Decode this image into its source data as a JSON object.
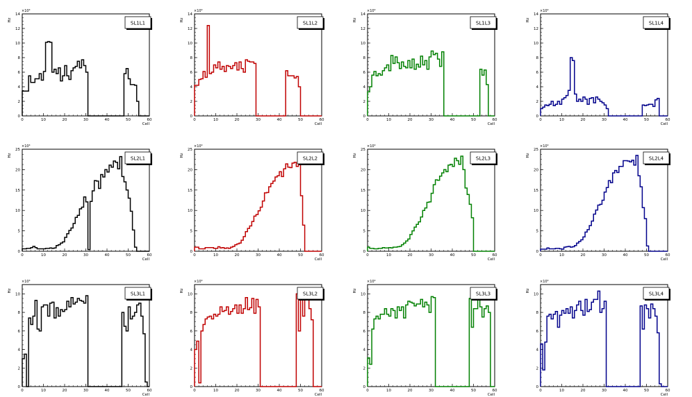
{
  "chart_data": [
    {
      "type": "histogram",
      "title": "SL1L1",
      "ylabel": "Hz",
      "xlabel": "Cell",
      "exponent": "×10³",
      "xlim": [
        0,
        60
      ],
      "ylim": [
        0,
        14
      ],
      "yticks": [
        0,
        2,
        4,
        6,
        8,
        10,
        12,
        14
      ],
      "xticks": [
        0,
        10,
        20,
        30,
        40,
        50,
        60
      ],
      "color": "#000000",
      "values": [
        3.4,
        3.4,
        3.4,
        5.5,
        4.6,
        4.6,
        5.1,
        5.1,
        5.8,
        4.9,
        6.1,
        10.1,
        10.2,
        10.1,
        6.0,
        6.4,
        5.8,
        6.6,
        4.8,
        5.5,
        6.9,
        5.5,
        5.0,
        6.2,
        6.6,
        6.8,
        7.5,
        6.6,
        7.7,
        6.9,
        6.0,
        0,
        0,
        0,
        0,
        0,
        0,
        0,
        0,
        0,
        0,
        0,
        0,
        0,
        0,
        0,
        0,
        0,
        5.8,
        6.5,
        5.1,
        4.3,
        4.3,
        4.2,
        2.0,
        0,
        0,
        0,
        0,
        0
      ]
    },
    {
      "type": "histogram",
      "title": "SL1L2",
      "ylabel": "Hz",
      "xlabel": "Cell",
      "exponent": "×10³",
      "xlim": [
        0,
        60
      ],
      "ylim": [
        0,
        14
      ],
      "yticks": [
        0,
        2,
        4,
        6,
        8,
        10,
        12,
        14
      ],
      "xticks": [
        0,
        10,
        20,
        30,
        40,
        50,
        60
      ],
      "color": "#c00000",
      "values": [
        4.2,
        4.2,
        5.0,
        5.1,
        6.1,
        5.3,
        12.4,
        5.8,
        6.0,
        7.0,
        6.6,
        7.4,
        6.4,
        6.8,
        6.1,
        6.9,
        6.8,
        6.5,
        6.9,
        7.3,
        6.3,
        7.4,
        6.5,
        6.0,
        7.7,
        7.5,
        7.4,
        7.4,
        7.2,
        0,
        0,
        0,
        0,
        0,
        0,
        0,
        0,
        0,
        0,
        0,
        0,
        0,
        0,
        6.2,
        5.5,
        5.5,
        5.5,
        5.2,
        5.4,
        4.0,
        0,
        0,
        0,
        0,
        0,
        0,
        0,
        0,
        0,
        0
      ]
    },
    {
      "type": "histogram",
      "title": "SL1L3",
      "ylabel": "Hz",
      "xlabel": "Cell",
      "exponent": "×10³",
      "xlim": [
        0,
        60
      ],
      "ylim": [
        0,
        14
      ],
      "yticks": [
        0,
        2,
        4,
        6,
        8,
        10,
        12,
        14
      ],
      "xticks": [
        0,
        10,
        20,
        30,
        40,
        50,
        60
      ],
      "color": "#008000",
      "values": [
        3.3,
        4.0,
        5.6,
        6.1,
        5.5,
        5.8,
        5.6,
        6.2,
        6.6,
        7.0,
        6.2,
        8.3,
        7.2,
        8.1,
        7.3,
        6.5,
        7.4,
        6.8,
        6.6,
        7.6,
        6.6,
        7.8,
        6.4,
        7.1,
        6.7,
        8.2,
        7.0,
        7.6,
        6.4,
        8.1,
        8.9,
        8.4,
        8.6,
        7.8,
        6.8,
        8.8,
        0,
        0,
        0,
        0,
        0,
        0,
        0,
        0,
        0,
        0,
        0,
        0,
        0,
        0,
        0,
        0,
        0,
        6.4,
        5.6,
        6.3,
        4.3,
        0,
        0,
        0
      ]
    },
    {
      "type": "histogram",
      "title": "SL1L4",
      "ylabel": "Hz",
      "xlabel": "Cell",
      "exponent": "×10³",
      "xlim": [
        0,
        60
      ],
      "ylim": [
        0,
        14
      ],
      "yticks": [
        0,
        2,
        4,
        6,
        8,
        10,
        12,
        14
      ],
      "xticks": [
        0,
        10,
        20,
        30,
        40,
        50,
        60
      ],
      "color": "#00008b",
      "values": [
        1.0,
        1.2,
        1.5,
        1.4,
        1.6,
        2.0,
        1.4,
        1.6,
        2.0,
        1.6,
        2.3,
        2.5,
        2.8,
        3.5,
        8.0,
        7.6,
        3.0,
        2.0,
        2.3,
        2.0,
        2.6,
        2.3,
        1.6,
        2.4,
        2.5,
        1.8,
        2.6,
        2.3,
        2.0,
        1.8,
        1.5,
        1.0,
        0,
        0,
        0,
        0,
        0,
        0,
        0,
        0,
        0,
        0,
        0,
        0,
        0,
        0,
        0,
        0,
        1.5,
        1.4,
        1.5,
        1.6,
        1.6,
        1.3,
        2.2,
        2.4,
        0,
        0,
        0,
        0
      ]
    },
    {
      "type": "histogram",
      "title": "SL2L1",
      "ylabel": "Hz",
      "xlabel": "Cell",
      "exponent": "×10³",
      "xlim": [
        0,
        60
      ],
      "ylim": [
        0,
        25
      ],
      "yticks": [
        0,
        5,
        10,
        15,
        20,
        25
      ],
      "xticks": [
        0,
        10,
        20,
        30,
        40,
        50,
        60
      ],
      "color": "#000000",
      "values": [
        0.6,
        0.6,
        0.7,
        0.7,
        0.9,
        1.2,
        0.9,
        0.6,
        0.6,
        0.6,
        0.6,
        0.7,
        0.7,
        0.8,
        0.7,
        0.8,
        1.4,
        1.6,
        2.0,
        2.3,
        3.4,
        4.3,
        5.1,
        5.7,
        6.8,
        8.3,
        8.8,
        10.4,
        10.8,
        13.3,
        12.1,
        0.4,
        12.2,
        14.8,
        17.3,
        17.2,
        15.4,
        18.8,
        18.2,
        20.0,
        19.4,
        21.1,
        20.6,
        22.1,
        21.8,
        20.2,
        23.2,
        18.3,
        17.0,
        15.0,
        13.0,
        9.8,
        5.2,
        1.0,
        0,
        0,
        0,
        0,
        0,
        0
      ]
    },
    {
      "type": "histogram",
      "title": "SL2L2",
      "ylabel": "Hz",
      "xlabel": "Cell",
      "exponent": "×10³",
      "xlim": [
        0,
        60
      ],
      "ylim": [
        0,
        25
      ],
      "yticks": [
        0,
        5,
        10,
        15,
        20,
        25
      ],
      "xticks": [
        0,
        10,
        20,
        30,
        40,
        50,
        60
      ],
      "color": "#c00000",
      "values": [
        1.0,
        1.0,
        0.6,
        0.6,
        0.6,
        0.9,
        0.9,
        0.9,
        0.9,
        0.7,
        0.7,
        1.1,
        0.8,
        0.9,
        0.7,
        0.8,
        0.7,
        1.0,
        1.2,
        1.6,
        1.8,
        2.0,
        2.7,
        3.6,
        4.8,
        5.6,
        6.2,
        7.3,
        8.6,
        9.0,
        9.9,
        10.8,
        12.3,
        14.3,
        14.4,
        15.8,
        16.6,
        17.2,
        18.2,
        18.5,
        19.5,
        18.3,
        20.2,
        21.4,
        20.6,
        20.5,
        21.6,
        21.8,
        20.8,
        22.1,
        13.6,
        6.4,
        0,
        0,
        0,
        0,
        0,
        0,
        0,
        0
      ]
    },
    {
      "type": "histogram",
      "title": "SL2L3",
      "ylabel": "Hz",
      "xlabel": "Cell",
      "exponent": "×10³",
      "xlim": [
        0,
        60
      ],
      "ylim": [
        0,
        25
      ],
      "yticks": [
        0,
        5,
        10,
        15,
        20,
        25
      ],
      "xticks": [
        0,
        10,
        20,
        30,
        40,
        50,
        60
      ],
      "color": "#008000",
      "values": [
        1.0,
        0.7,
        0.7,
        0.6,
        0.6,
        0.7,
        0.7,
        0.9,
        0.8,
        0.8,
        0.9,
        0.8,
        1.0,
        1.0,
        1.1,
        1.2,
        1.6,
        2.0,
        2.5,
        3.0,
        4.1,
        5.0,
        5.9,
        6.6,
        7.2,
        8.4,
        10.0,
        10.6,
        12.0,
        12.1,
        14.2,
        16.3,
        17.5,
        17.4,
        18.4,
        19.2,
        20.0,
        19.5,
        21.1,
        21.3,
        20.8,
        22.8,
        22.2,
        21.3,
        23.3,
        20.0,
        15.5,
        13.9,
        11.5,
        8.2,
        0,
        0,
        0,
        0,
        0,
        0,
        0,
        0,
        0,
        0
      ]
    },
    {
      "type": "histogram",
      "title": "SL2L4",
      "ylabel": "Hz",
      "xlabel": "Cell",
      "exponent": "×10³",
      "xlim": [
        0,
        60
      ],
      "ylim": [
        0,
        25
      ],
      "yticks": [
        0,
        5,
        10,
        15,
        20,
        25
      ],
      "xticks": [
        0,
        10,
        20,
        30,
        40,
        50,
        60
      ],
      "color": "#00008b",
      "values": [
        0.5,
        0.5,
        0.5,
        0.8,
        0.6,
        0.6,
        0.6,
        0.7,
        0.7,
        0.6,
        0.5,
        1.0,
        1.1,
        1.2,
        1.0,
        1.1,
        1.4,
        2.0,
        2.4,
        2.8,
        3.5,
        4.7,
        5.3,
        6.3,
        7.4,
        9.1,
        10.1,
        11.3,
        11.5,
        12.5,
        14.5,
        15.6,
        17.3,
        16.8,
        19.2,
        19.8,
        19.3,
        20.8,
        20.8,
        22.2,
        22.2,
        22.1,
        21.9,
        22.3,
        21.1,
        23.5,
        18.5,
        15.8,
        10.7,
        8.0,
        1.3,
        0,
        0,
        0,
        0,
        0,
        0,
        0,
        0,
        0
      ]
    },
    {
      "type": "histogram",
      "title": "SL3L1",
      "ylabel": "Hz",
      "xlabel": "Cell",
      "exponent": "×10³",
      "xlim": [
        0,
        60
      ],
      "ylim": [
        0,
        11
      ],
      "yticks": [
        0,
        2,
        4,
        6,
        8,
        10
      ],
      "xticks": [
        0,
        10,
        20,
        30,
        40,
        50,
        60
      ],
      "color": "#000000",
      "values": [
        3.0,
        3.5,
        0,
        7.4,
        6.7,
        7.6,
        9.3,
        6.2,
        6.0,
        8.6,
        8.8,
        8.8,
        7.6,
        9.0,
        9.1,
        7.4,
        8.5,
        7.6,
        8.3,
        8.1,
        8.3,
        9.2,
        8.6,
        9.6,
        8.9,
        9.1,
        9.5,
        9.3,
        9.2,
        9.0,
        9.8,
        0,
        0,
        0,
        0,
        0,
        0,
        0,
        0,
        0,
        0,
        0,
        0,
        0,
        0,
        0,
        0,
        8.0,
        6.5,
        6.0,
        8.6,
        7.3,
        7.6,
        8.0,
        8.8,
        9.0,
        7.6,
        5.7,
        0.5,
        0
      ]
    },
    {
      "type": "histogram",
      "title": "SL3L2",
      "ylabel": "Hz",
      "xlabel": "Cell",
      "exponent": "×10³",
      "xlim": [
        0,
        60
      ],
      "ylim": [
        0,
        11
      ],
      "yticks": [
        0,
        2,
        4,
        6,
        8,
        10
      ],
      "xticks": [
        0,
        10,
        20,
        30,
        40,
        50,
        60
      ],
      "color": "#c00000",
      "values": [
        4.0,
        4.9,
        0.4,
        6.0,
        6.7,
        7.3,
        7.5,
        7.6,
        7.3,
        7.8,
        7.6,
        7.8,
        8.6,
        8.1,
        8.2,
        8.6,
        7.8,
        8.1,
        8.4,
        8.8,
        7.9,
        8.8,
        7.9,
        8.4,
        9.6,
        8.3,
        8.5,
        9.5,
        7.9,
        9.4,
        8.6,
        0,
        0,
        0,
        0,
        0,
        0,
        0,
        0,
        0,
        0,
        0,
        0,
        0,
        0,
        0,
        0,
        0,
        10.0,
        6.0,
        9.8,
        7.6,
        9.6,
        9.6,
        8.4,
        7.2,
        0,
        0,
        0,
        0
      ]
    },
    {
      "type": "histogram",
      "title": "SL3L3",
      "ylabel": "Hz",
      "xlabel": "Cell",
      "exponent": "×10³",
      "xlim": [
        0,
        60
      ],
      "ylim": [
        0,
        11
      ],
      "yticks": [
        0,
        2,
        4,
        6,
        8,
        10
      ],
      "xticks": [
        0,
        10,
        20,
        30,
        40,
        50,
        60
      ],
      "color": "#008000",
      "values": [
        3.1,
        2.4,
        6.2,
        7.3,
        7.6,
        7.3,
        7.8,
        7.8,
        8.4,
        7.8,
        7.6,
        8.4,
        8.2,
        7.4,
        8.6,
        8.2,
        8.6,
        7.4,
        8.8,
        9.2,
        9.1,
        9.0,
        8.7,
        8.9,
        8.9,
        9.4,
        8.6,
        9.1,
        8.8,
        8.0,
        9.7,
        9.6,
        0,
        0,
        0,
        0,
        0,
        0,
        0,
        0,
        0,
        0,
        0,
        0,
        0,
        0,
        0,
        0,
        9.5,
        6.4,
        8.4,
        8.4,
        9.4,
        8.6,
        7.5,
        8.4,
        8.7,
        8.0,
        0,
        0
      ]
    },
    {
      "type": "histogram",
      "title": "SL3L4",
      "ylabel": "Hz",
      "xlabel": "Cell",
      "exponent": "×10³",
      "xlim": [
        0,
        60
      ],
      "ylim": [
        0,
        11
      ],
      "yticks": [
        0,
        2,
        4,
        6,
        8,
        10
      ],
      "xticks": [
        0,
        10,
        20,
        30,
        40,
        50,
        60
      ],
      "color": "#00008b",
      "values": [
        4.6,
        1.8,
        4.8,
        7.6,
        7.8,
        7.3,
        7.8,
        8.1,
        6.4,
        7.7,
        8.2,
        7.9,
        8.4,
        7.9,
        8.6,
        7.4,
        8.2,
        8.8,
        9.2,
        8.2,
        7.7,
        9.4,
        8.1,
        8.3,
        9.1,
        9.4,
        9.4,
        10.3,
        8.0,
        8.4,
        9.2,
        0,
        0,
        0,
        0,
        0,
        0,
        0,
        0,
        0,
        0,
        0,
        0,
        0,
        0,
        0,
        0,
        8.7,
        6.2,
        8.8,
        8.4,
        7.4,
        8.9,
        8.4,
        7.6,
        5.8,
        0.3,
        0,
        0,
        0
      ]
    }
  ]
}
